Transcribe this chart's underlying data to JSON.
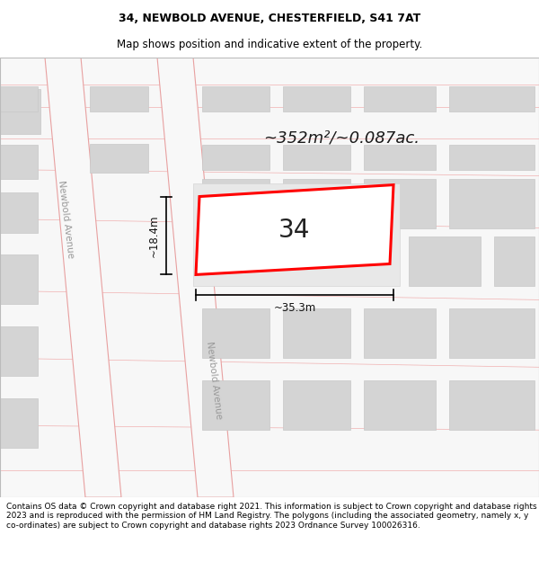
{
  "title": "34, NEWBOLD AVENUE, CHESTERFIELD, S41 7AT",
  "subtitle": "Map shows position and indicative extent of the property.",
  "footer": "Contains OS data © Crown copyright and database right 2021. This information is subject to Crown copyright and database rights 2023 and is reproduced with the permission of HM Land Registry. The polygons (including the associated geometry, namely x, y co-ordinates) are subject to Crown copyright and database rights 2023 Ordnance Survey 100026316.",
  "area_text": "~352m²/~0.087ac.",
  "width_label": "~35.3m",
  "height_label": "~18.4m",
  "house_number": "34",
  "map_bg": "#f5f5f5",
  "road_fill": "#f8f8f8",
  "road_line": "#e8a0a0",
  "block_fill": "#d4d4d4",
  "block_line": "#c8c8c8",
  "red_color": "#ff0000",
  "title_fontsize": 9,
  "subtitle_fontsize": 8.5,
  "footer_fontsize": 6.5
}
